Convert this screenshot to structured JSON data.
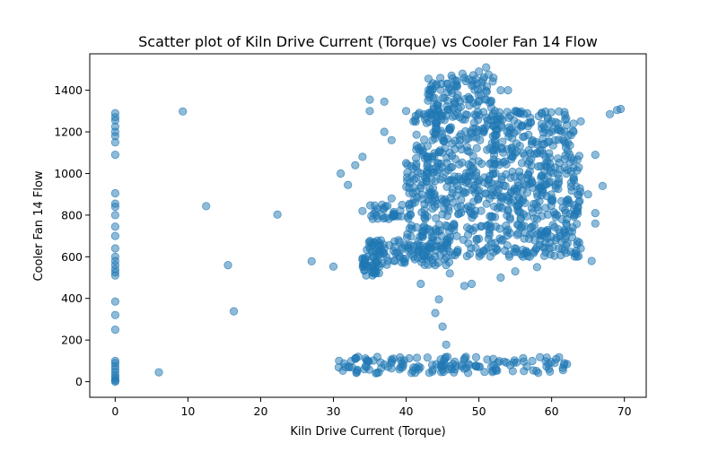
{
  "chart_data": {
    "type": "scatter",
    "title": "Scatter plot of Kiln Drive Current (Torque) vs Cooler Fan 14 Flow",
    "xlabel": "Kiln Drive Current (Torque)",
    "ylabel": "Cooler Fan 14 Flow",
    "xlim": [
      -3.5,
      73
    ],
    "ylim": [
      -75,
      1575
    ],
    "xticks": [
      0,
      10,
      20,
      30,
      40,
      50,
      60,
      70
    ],
    "yticks": [
      0,
      200,
      400,
      600,
      800,
      1000,
      1200,
      1400
    ],
    "grid": false,
    "marker_color": "#1f77b4",
    "marker_alpha": 0.5,
    "series": [
      {
        "points": [
          [
            0,
            0
          ],
          [
            0,
            5
          ],
          [
            0,
            10
          ],
          [
            0,
            20
          ],
          [
            0,
            30
          ],
          [
            0,
            45
          ],
          [
            0,
            60
          ],
          [
            0,
            75
          ],
          [
            0,
            90
          ],
          [
            0,
            100
          ],
          [
            0,
            250
          ],
          [
            0,
            320
          ],
          [
            0,
            385
          ],
          [
            0,
            510
          ],
          [
            0,
            525
          ],
          [
            0,
            540
          ],
          [
            0,
            560
          ],
          [
            0,
            580
          ],
          [
            0,
            600
          ],
          [
            0,
            640
          ],
          [
            0,
            700
          ],
          [
            0,
            745
          ],
          [
            0,
            800
          ],
          [
            0,
            840
          ],
          [
            0,
            855
          ],
          [
            0,
            905
          ],
          [
            0,
            1090
          ],
          [
            0,
            1150
          ],
          [
            0,
            1180
          ],
          [
            0,
            1200
          ],
          [
            0,
            1225
          ],
          [
            0,
            1255
          ],
          [
            0,
            1270
          ],
          [
            0,
            1290
          ],
          [
            6,
            45
          ],
          [
            9.3,
            1298
          ],
          [
            12.5,
            843
          ],
          [
            15.5,
            560
          ],
          [
            16.3,
            338
          ],
          [
            22.3,
            803
          ],
          [
            27,
            578
          ],
          [
            30,
            553
          ],
          [
            31,
            1000
          ],
          [
            32,
            945
          ],
          [
            33,
            1040
          ],
          [
            34,
            1080
          ],
          [
            35,
            1300
          ],
          [
            35,
            1355
          ],
          [
            37,
            1200
          ],
          [
            37,
            1345
          ],
          [
            38,
            1160
          ],
          [
            40,
            1300
          ],
          [
            42,
            1000
          ],
          [
            43,
            1380
          ],
          [
            44,
            330
          ],
          [
            44.5,
            395
          ],
          [
            45,
            265
          ],
          [
            45.5,
            178
          ],
          [
            46,
            1100
          ],
          [
            48,
            1460
          ],
          [
            50,
            1490
          ],
          [
            51,
            1510
          ],
          [
            53,
            1400
          ],
          [
            54,
            1400
          ],
          [
            57,
            1010
          ],
          [
            58,
            550
          ],
          [
            60,
            1250
          ],
          [
            61,
            640
          ],
          [
            62,
            700
          ],
          [
            63,
            1200
          ],
          [
            64,
            1250
          ],
          [
            65,
            900
          ],
          [
            66,
            1090
          ],
          [
            67,
            940
          ],
          [
            68,
            1285
          ],
          [
            69,
            1305
          ],
          [
            69.5,
            1310
          ],
          [
            65.5,
            580
          ],
          [
            66,
            810
          ],
          [
            42,
            470
          ],
          [
            48,
            460
          ],
          [
            53,
            500
          ],
          [
            36,
            605
          ],
          [
            37,
            640
          ],
          [
            41,
            600
          ],
          [
            44,
            560
          ],
          [
            46,
            520
          ],
          [
            49,
            470
          ],
          [
            55,
            530
          ],
          [
            57,
            600
          ],
          [
            59,
            700
          ],
          [
            62,
            760
          ],
          [
            64,
            640
          ],
          [
            66,
            760
          ],
          [
            34,
            820
          ],
          [
            38,
            880
          ],
          [
            40,
            1050
          ],
          [
            41,
            1250
          ],
          [
            43,
            1350
          ],
          [
            47,
            1420
          ],
          [
            52,
            1460
          ],
          [
            55,
            1300
          ],
          [
            58,
            1100
          ],
          [
            60,
            1200
          ],
          [
            62,
            1000
          ],
          [
            63,
            1240
          ]
        ],
        "clusters": [
          {
            "x_range": [
              30.5,
              63
            ],
            "y_range": [
              40,
              120
            ]
          },
          {
            "x_range": [
              34,
              37
            ],
            "y_range": [
              510,
              680
            ]
          },
          {
            "x_range": [
              36,
              46
            ],
            "y_range": [
              560,
              680
            ]
          },
          {
            "x_range": [
              40,
              64
            ],
            "y_range": [
              600,
              760
            ]
          },
          {
            "x_range": [
              35,
              64
            ],
            "y_range": [
              780,
              860
            ]
          },
          {
            "x_range": [
              40,
              64
            ],
            "y_range": [
              860,
              1100
            ]
          },
          {
            "x_range": [
              41,
              63
            ],
            "y_range": [
              1100,
              1300
            ]
          },
          {
            "x_range": [
              43,
              52
            ],
            "y_range": [
              1300,
              1480
            ]
          }
        ]
      }
    ]
  }
}
